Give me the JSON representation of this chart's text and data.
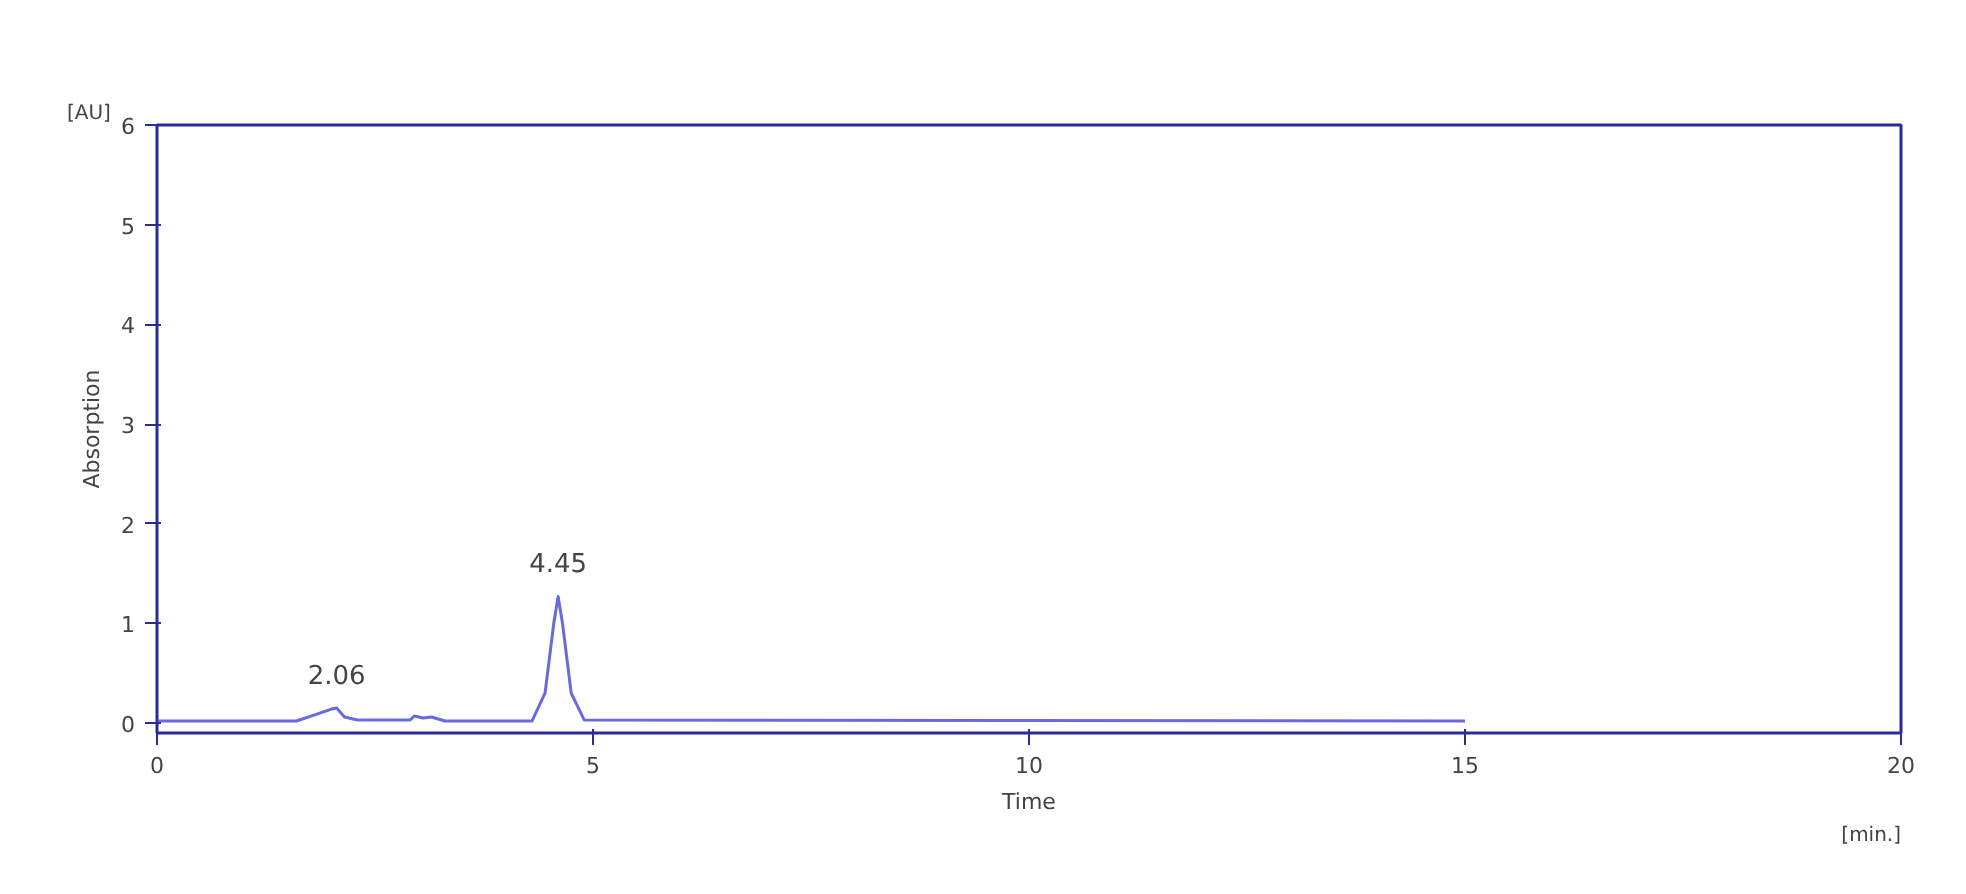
{
  "chart_data": {
    "type": "line",
    "xlabel": "Time",
    "ylabel": "Absorption",
    "x": [
      0,
      1.6,
      1.8,
      2.0,
      2.06,
      2.15,
      2.3,
      2.6,
      2.9,
      2.95,
      3.05,
      3.15,
      3.3,
      4.3,
      4.45,
      4.55,
      4.6,
      4.65,
      4.75,
      4.9,
      15
    ],
    "series": [
      {
        "color": "#6a6ae0",
        "values": [
          0.02,
          0.02,
          0.08,
          0.14,
          0.15,
          0.06,
          0.03,
          0.03,
          0.03,
          0.07,
          0.05,
          0.06,
          0.02,
          0.02,
          0.3,
          1.0,
          1.27,
          1.0,
          0.3,
          0.03,
          0.02
        ]
      }
    ],
    "xlim": [
      0,
      20
    ],
    "xticks": [
      0,
      5,
      10,
      15,
      20
    ],
    "ylim": [
      -0.1,
      6
    ],
    "yticks": [
      0,
      1,
      2,
      3,
      4,
      5,
      6
    ],
    "annotations": [
      {
        "text": "2.06",
        "x": 2.06,
        "y": 0.15
      },
      {
        "text": "4.45",
        "x": 4.6,
        "y": 1.27
      },
      "[AU]",
      "[min.]"
    ],
    "grid": false,
    "marker": "none",
    "line_style": "solid"
  }
}
